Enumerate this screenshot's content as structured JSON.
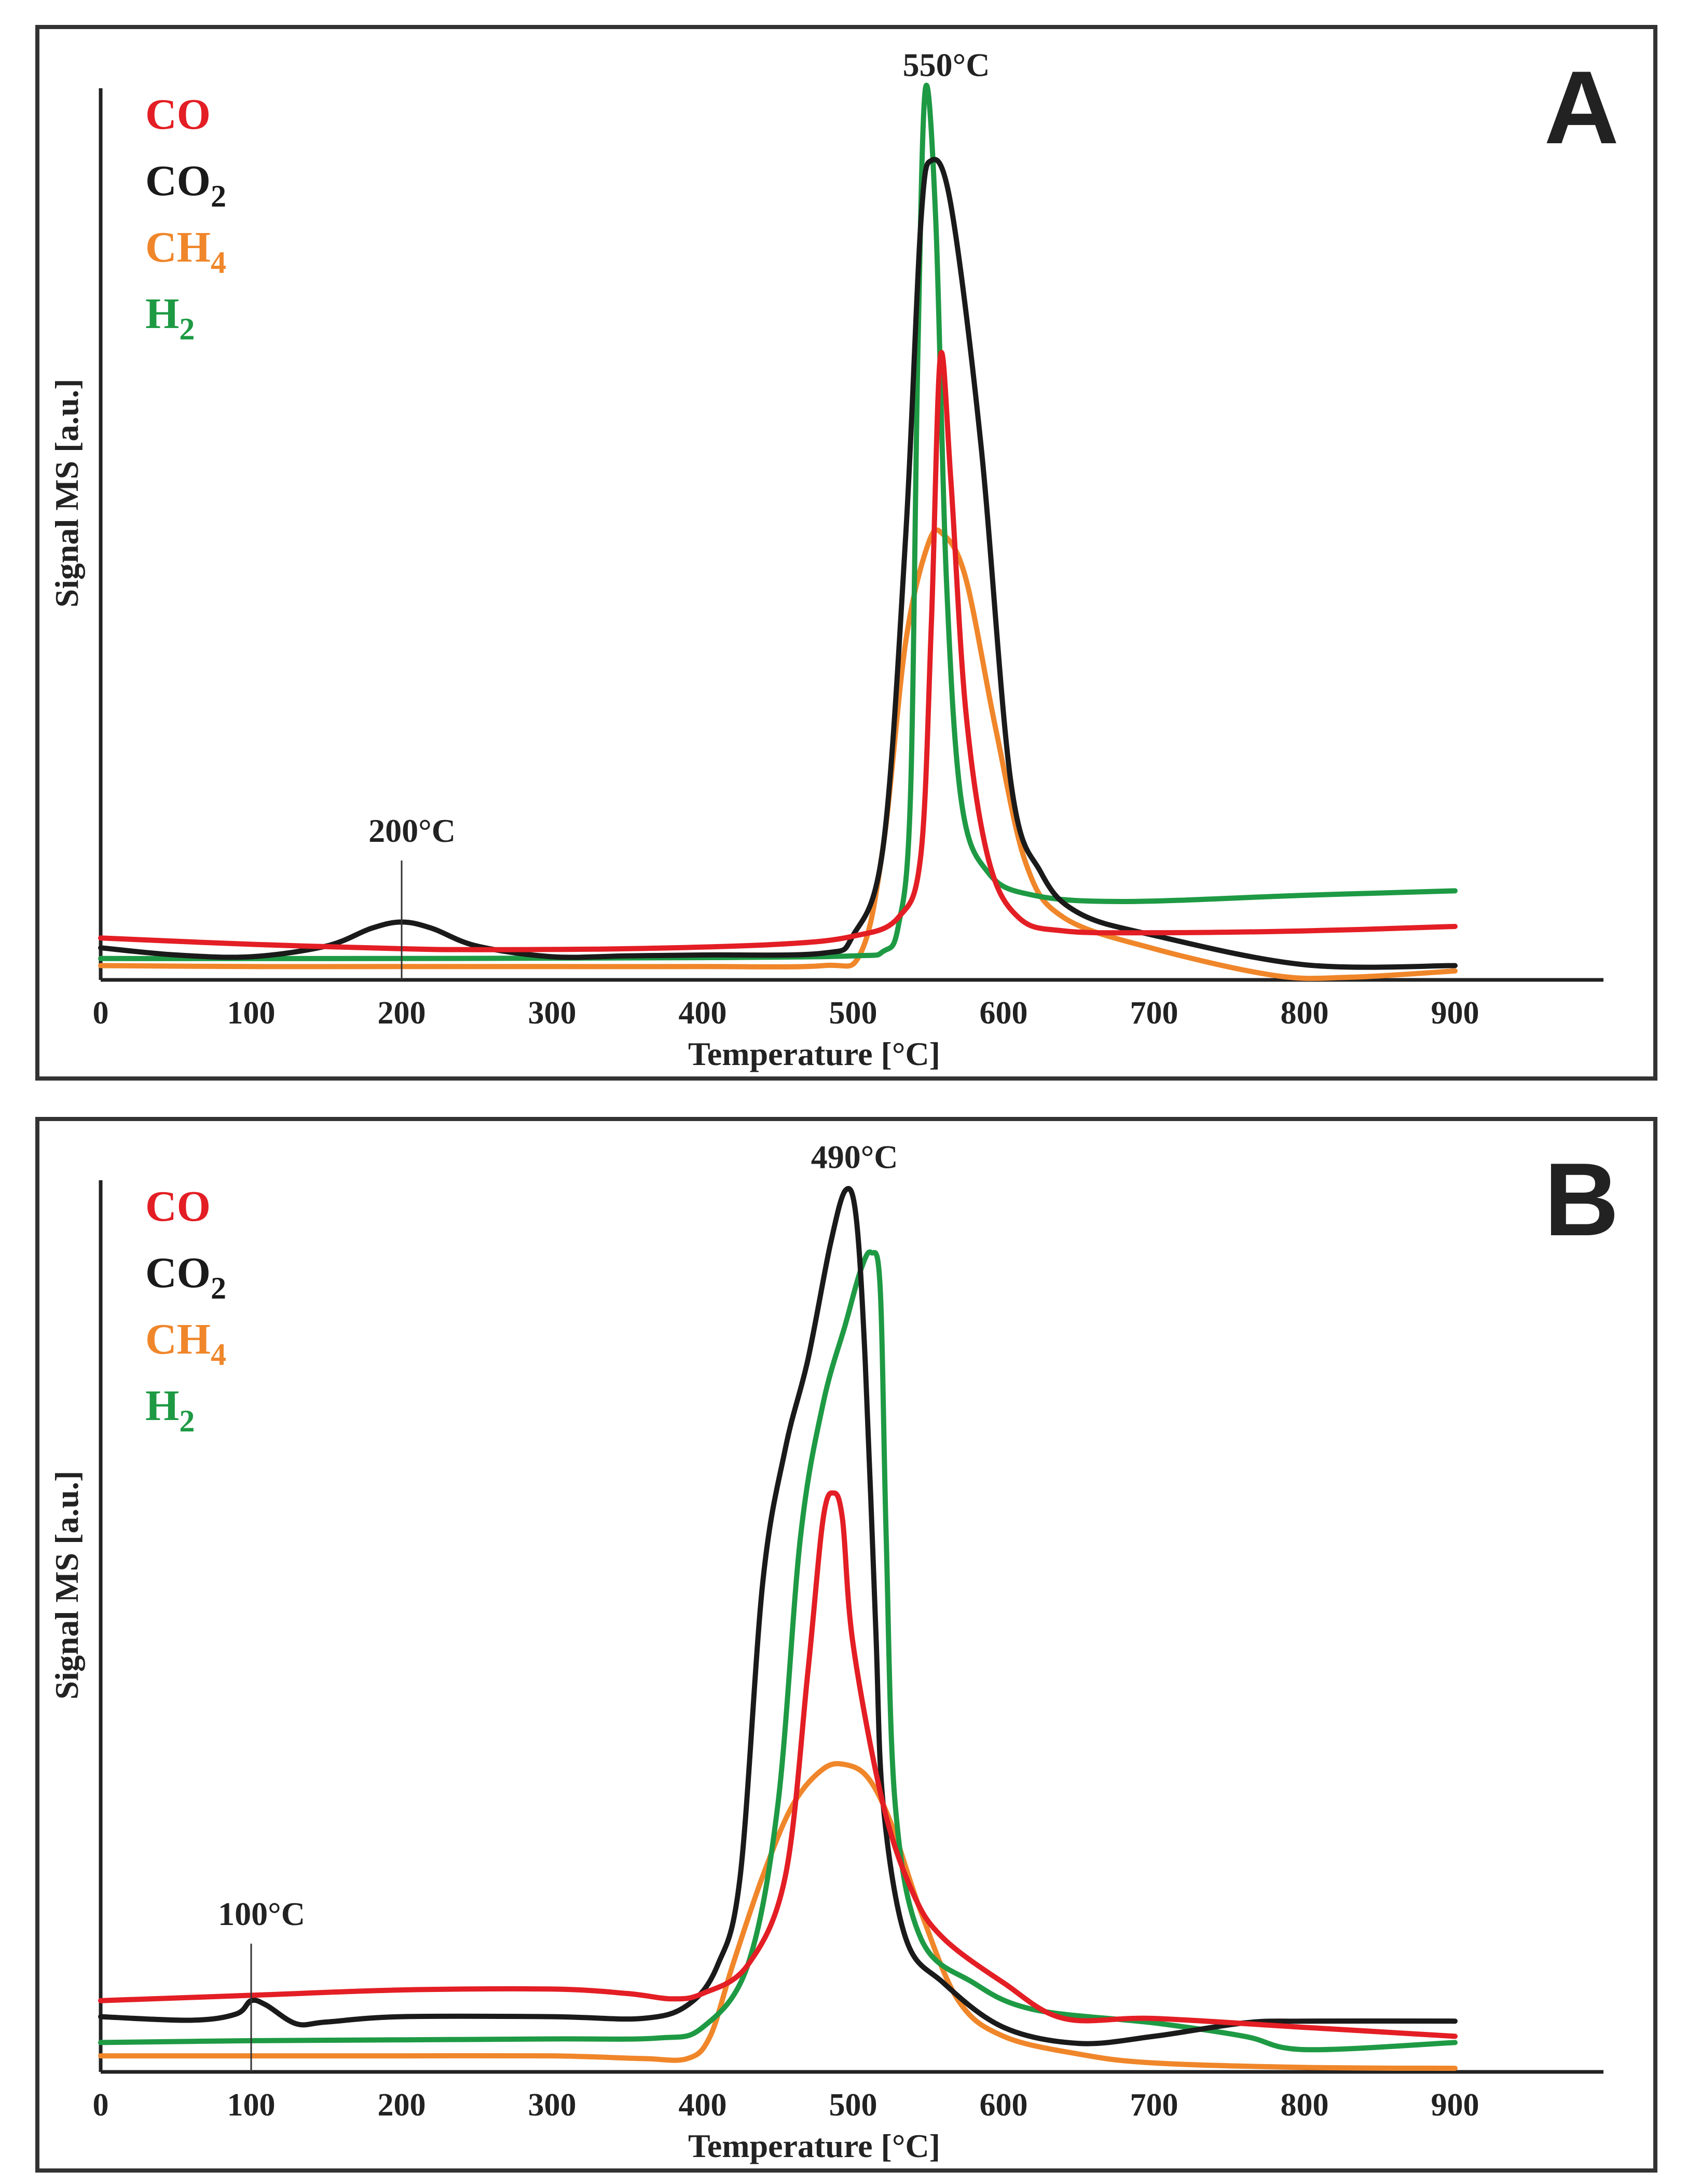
{
  "chart_data": [
    {
      "type": "line",
      "panel_label": "A",
      "xlabel": "Temperature [°C]",
      "ylabel": "Signal MS [a.u.]",
      "xlim": [
        0,
        1000
      ],
      "ylim": [
        0,
        100
      ],
      "x_ticks": [
        "0",
        "100",
        "200",
        "300",
        "400",
        "500",
        "600",
        "700",
        "800",
        "900"
      ],
      "grid": false,
      "legend_position": "top-left",
      "annotations": [
        {
          "text": "550°C",
          "x": 555,
          "y": 101.5,
          "marker_line": false
        },
        {
          "text": "200°C",
          "x": 200,
          "y": 15.5,
          "marker_line": true
        }
      ],
      "series": [
        {
          "name": "CO",
          "formula": "CO",
          "sub": "",
          "color": "#e31e24",
          "points": [
            [
              0,
              4.7
            ],
            [
              100,
              4.0
            ],
            [
              200,
              3.5
            ],
            [
              250,
              3.4
            ],
            [
              350,
              3.5
            ],
            [
              450,
              4.0
            ],
            [
              500,
              4.9
            ],
            [
              530,
              7.0
            ],
            [
              545,
              14.0
            ],
            [
              552,
              40.0
            ],
            [
              558,
              70.0
            ],
            [
              565,
              56.0
            ],
            [
              575,
              30.0
            ],
            [
              590,
              13.5
            ],
            [
              610,
              7.0
            ],
            [
              640,
              5.5
            ],
            [
              700,
              5.3
            ],
            [
              800,
              5.5
            ],
            [
              900,
              6.0
            ]
          ]
        },
        {
          "name": "CO2",
          "formula": "CO",
          "sub": "2",
          "color": "#1a1a1a",
          "points": [
            [
              0,
              3.6
            ],
            [
              50,
              2.8
            ],
            [
              100,
              2.6
            ],
            [
              150,
              3.8
            ],
            [
              180,
              5.8
            ],
            [
              200,
              6.5
            ],
            [
              220,
              5.8
            ],
            [
              250,
              3.8
            ],
            [
              300,
              2.6
            ],
            [
              350,
              2.7
            ],
            [
              400,
              2.8
            ],
            [
              480,
              3.0
            ],
            [
              500,
              5.0
            ],
            [
              520,
              15.0
            ],
            [
              535,
              50.0
            ],
            [
              545,
              85.0
            ],
            [
              552,
              92.0
            ],
            [
              565,
              87.0
            ],
            [
              585,
              60.0
            ],
            [
              605,
              22.0
            ],
            [
              625,
              12.0
            ],
            [
              650,
              7.5
            ],
            [
              700,
              5.0
            ],
            [
              800,
              1.7
            ],
            [
              900,
              1.6
            ]
          ]
        },
        {
          "name": "CH4",
          "formula": "CH",
          "sub": "4",
          "color": "#f0862a",
          "points": [
            [
              0,
              1.6
            ],
            [
              100,
              1.5
            ],
            [
              200,
              1.5
            ],
            [
              300,
              1.5
            ],
            [
              400,
              1.5
            ],
            [
              480,
              1.6
            ],
            [
              505,
              3.0
            ],
            [
              520,
              15.0
            ],
            [
              535,
              38.0
            ],
            [
              550,
              49.0
            ],
            [
              560,
              50.0
            ],
            [
              575,
              45.0
            ],
            [
              595,
              28.0
            ],
            [
              615,
              13.0
            ],
            [
              640,
              7.0
            ],
            [
              700,
              3.5
            ],
            [
              780,
              0.5
            ],
            [
              830,
              0.3
            ],
            [
              900,
              1.0
            ]
          ]
        },
        {
          "name": "H2",
          "formula": "H",
          "sub": "2",
          "color": "#1e9a44",
          "points": [
            [
              0,
              2.4
            ],
            [
              200,
              2.4
            ],
            [
              400,
              2.5
            ],
            [
              500,
              2.7
            ],
            [
              520,
              3.2
            ],
            [
              530,
              6.0
            ],
            [
              538,
              20.0
            ],
            [
              543,
              70.0
            ],
            [
              548,
              100.0
            ],
            [
              555,
              85.0
            ],
            [
              562,
              45.0
            ],
            [
              572,
              20.0
            ],
            [
              590,
              12.0
            ],
            [
              620,
              9.5
            ],
            [
              680,
              8.8
            ],
            [
              800,
              9.5
            ],
            [
              900,
              10.0
            ]
          ]
        }
      ]
    },
    {
      "type": "line",
      "panel_label": "B",
      "xlabel": "Temperature [°C]",
      "ylabel": "Signal MS [a.u.]",
      "xlim": [
        0,
        1000
      ],
      "ylim": [
        0,
        100
      ],
      "x_ticks": [
        "0",
        "100",
        "200",
        "300",
        "400",
        "500",
        "600",
        "700",
        "800",
        "900"
      ],
      "grid": false,
      "legend_position": "top-left",
      "annotations": [
        {
          "text": "490°C",
          "x": 494,
          "y": 101.5,
          "marker_line": false
        },
        {
          "text": "100°C",
          "x": 100,
          "y": 16.5,
          "marker_line": true
        }
      ],
      "series": [
        {
          "name": "CO",
          "formula": "CO",
          "sub": "",
          "color": "#e31e24",
          "points": [
            [
              0,
              8.0
            ],
            [
              100,
              8.6
            ],
            [
              200,
              9.2
            ],
            [
              300,
              9.3
            ],
            [
              350,
              8.8
            ],
            [
              380,
              8.2
            ],
            [
              400,
              8.8
            ],
            [
              430,
              12.0
            ],
            [
              455,
              22.0
            ],
            [
              470,
              45.0
            ],
            [
              480,
              62.0
            ],
            [
              487,
              65.0
            ],
            [
              493,
              62.0
            ],
            [
              500,
              48.0
            ],
            [
              520,
              30.0
            ],
            [
              540,
              20.0
            ],
            [
              560,
              15.0
            ],
            [
              600,
              10.0
            ],
            [
              640,
              6.0
            ],
            [
              700,
              6.0
            ],
            [
              800,
              5.0
            ],
            [
              900,
              4.0
            ]
          ]
        },
        {
          "name": "CO2",
          "formula": "CO",
          "sub": "2",
          "color": "#1a1a1a",
          "points": [
            [
              0,
              6.2
            ],
            [
              60,
              5.8
            ],
            [
              90,
              6.5
            ],
            [
              100,
              8.0
            ],
            [
              110,
              7.5
            ],
            [
              130,
              5.4
            ],
            [
              150,
              5.6
            ],
            [
              200,
              6.2
            ],
            [
              300,
              6.2
            ],
            [
              360,
              6.0
            ],
            [
              390,
              7.5
            ],
            [
              410,
              12.0
            ],
            [
              425,
              22.0
            ],
            [
              440,
              55.0
            ],
            [
              455,
              70.0
            ],
            [
              470,
              80.0
            ],
            [
              485,
              93.0
            ],
            [
              495,
              99.0
            ],
            [
              502,
              96.0
            ],
            [
              508,
              80.0
            ],
            [
              515,
              50.0
            ],
            [
              520,
              30.0
            ],
            [
              535,
              15.0
            ],
            [
              560,
              10.0
            ],
            [
              600,
              5.0
            ],
            [
              650,
              3.2
            ],
            [
              700,
              4.0
            ],
            [
              760,
              5.5
            ],
            [
              800,
              5.7
            ],
            [
              900,
              5.7
            ]
          ]
        },
        {
          "name": "CH4",
          "formula": "CH",
          "sub": "4",
          "color": "#f0862a",
          "points": [
            [
              0,
              1.8
            ],
            [
              100,
              1.8
            ],
            [
              200,
              1.8
            ],
            [
              300,
              1.8
            ],
            [
              360,
              1.5
            ],
            [
              390,
              1.5
            ],
            [
              405,
              4.0
            ],
            [
              420,
              12.0
            ],
            [
              440,
              22.0
            ],
            [
              460,
              30.0
            ],
            [
              480,
              34.0
            ],
            [
              495,
              34.5
            ],
            [
              510,
              33.0
            ],
            [
              525,
              28.0
            ],
            [
              545,
              18.0
            ],
            [
              570,
              8.0
            ],
            [
              600,
              4.0
            ],
            [
              650,
              2.0
            ],
            [
              700,
              1.0
            ],
            [
              800,
              0.5
            ],
            [
              900,
              0.4
            ]
          ]
        },
        {
          "name": "H2",
          "formula": "H",
          "sub": "2",
          "color": "#1e9a44",
          "points": [
            [
              0,
              3.3
            ],
            [
              100,
              3.5
            ],
            [
              200,
              3.6
            ],
            [
              300,
              3.7
            ],
            [
              370,
              3.8
            ],
            [
              400,
              5.0
            ],
            [
              430,
              12.0
            ],
            [
              450,
              30.0
            ],
            [
              465,
              60.0
            ],
            [
              480,
              75.0
            ],
            [
              495,
              84.0
            ],
            [
              505,
              90.0
            ],
            [
              512,
              92.0
            ],
            [
              518,
              88.0
            ],
            [
              522,
              60.0
            ],
            [
              528,
              30.0
            ],
            [
              545,
              15.0
            ],
            [
              580,
              10.0
            ],
            [
              620,
              7.0
            ],
            [
              700,
              5.5
            ],
            [
              760,
              4.0
            ],
            [
              800,
              2.5
            ],
            [
              900,
              3.3
            ]
          ]
        }
      ]
    }
  ]
}
